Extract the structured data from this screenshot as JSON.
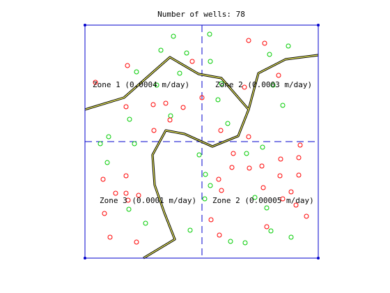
{
  "title": "Number of wells: 78",
  "colors": {
    "frame": "#0000cc",
    "divider": "#0000cc",
    "river_outer": "#000000",
    "river_inner": "#ffff66",
    "well_red": "#ff0000",
    "well_green": "#00cc00",
    "text": "#000000"
  },
  "zones": [
    {
      "id": "zone-1",
      "label": "Zone 1 (0.0004 m/day)"
    },
    {
      "id": "zone-2-north",
      "label": "Zone 2 (0.0003 m/day)"
    },
    {
      "id": "zone-3",
      "label": "Zone 3 (0.0001 m/day)"
    },
    {
      "id": "zone-2-south",
      "label": "Zone 2 (0.00005 m/day)"
    }
  ],
  "well_count": 78
}
